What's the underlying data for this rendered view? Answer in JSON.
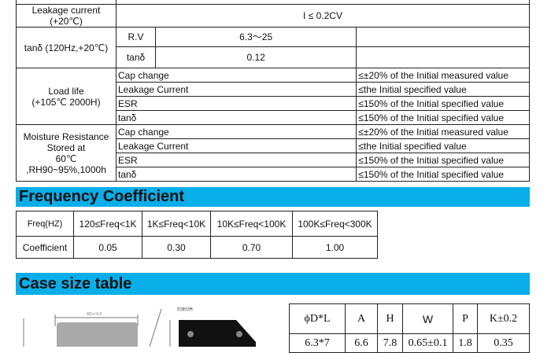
{
  "spec": {
    "leakage": {
      "label": "Leakage current",
      "cond": "(+20℃)",
      "value": "I ≤ 0.2CV"
    },
    "tan": {
      "label": "tanδ (120Hz,+20℃)",
      "rv_label": "R.V",
      "rv_value": "6.3～25",
      "tan_label": "tanδ",
      "tan_value": "0.12"
    },
    "load": {
      "label": "Load life",
      "cond": "(+105℃ 2000H)",
      "rows": [
        {
          "k": "Cap change",
          "v": "≤±20% of the  Initial measured value"
        },
        {
          "k": "Leakage Current",
          "v": "≤the Initial specified value"
        },
        {
          "k": "ESR",
          "v": "≤150% of the Initial specified value"
        },
        {
          "k": "tanδ",
          "v": "≤150% of the Initial specified value"
        }
      ]
    },
    "moisture": {
      "l1": "Moisture Resistance",
      "l2": "Stored at",
      "l3": "60℃",
      "l4": ",RH90~95%,1000h",
      "rows": [
        {
          "k": "Cap change",
          "v": "≤±20% of the  Initial measured value"
        },
        {
          "k": "Leakage Current",
          "v": "≤the Initial specified value"
        },
        {
          "k": "ESR",
          "v": "≤150% of the Initial specified value"
        },
        {
          "k": "tanδ",
          "v": "≤150% of the Initial specified value"
        }
      ]
    }
  },
  "freq": {
    "title": "Frequency Coefficient",
    "headers": [
      "Freq(HZ)",
      "120≤Freq<1K",
      "1K≤Freq<10K",
      "10K≤Freq<100K",
      "100K≤Freq<300K"
    ],
    "row": [
      "Coefficient",
      "0.05",
      "0.30",
      "0.70",
      "1.00"
    ]
  },
  "case": {
    "title": "Case size table",
    "headers": [
      "ϕD*L",
      "A",
      "H",
      "W",
      "P",
      "K±0.2"
    ],
    "row": [
      "6.3*7",
      "6.6",
      "7.8",
      "0.65±0.1",
      "1.8",
      "0.35"
    ],
    "diagram_labels": {
      "dim": "4D+/-0.5",
      "note": "防爆切壳"
    }
  }
}
